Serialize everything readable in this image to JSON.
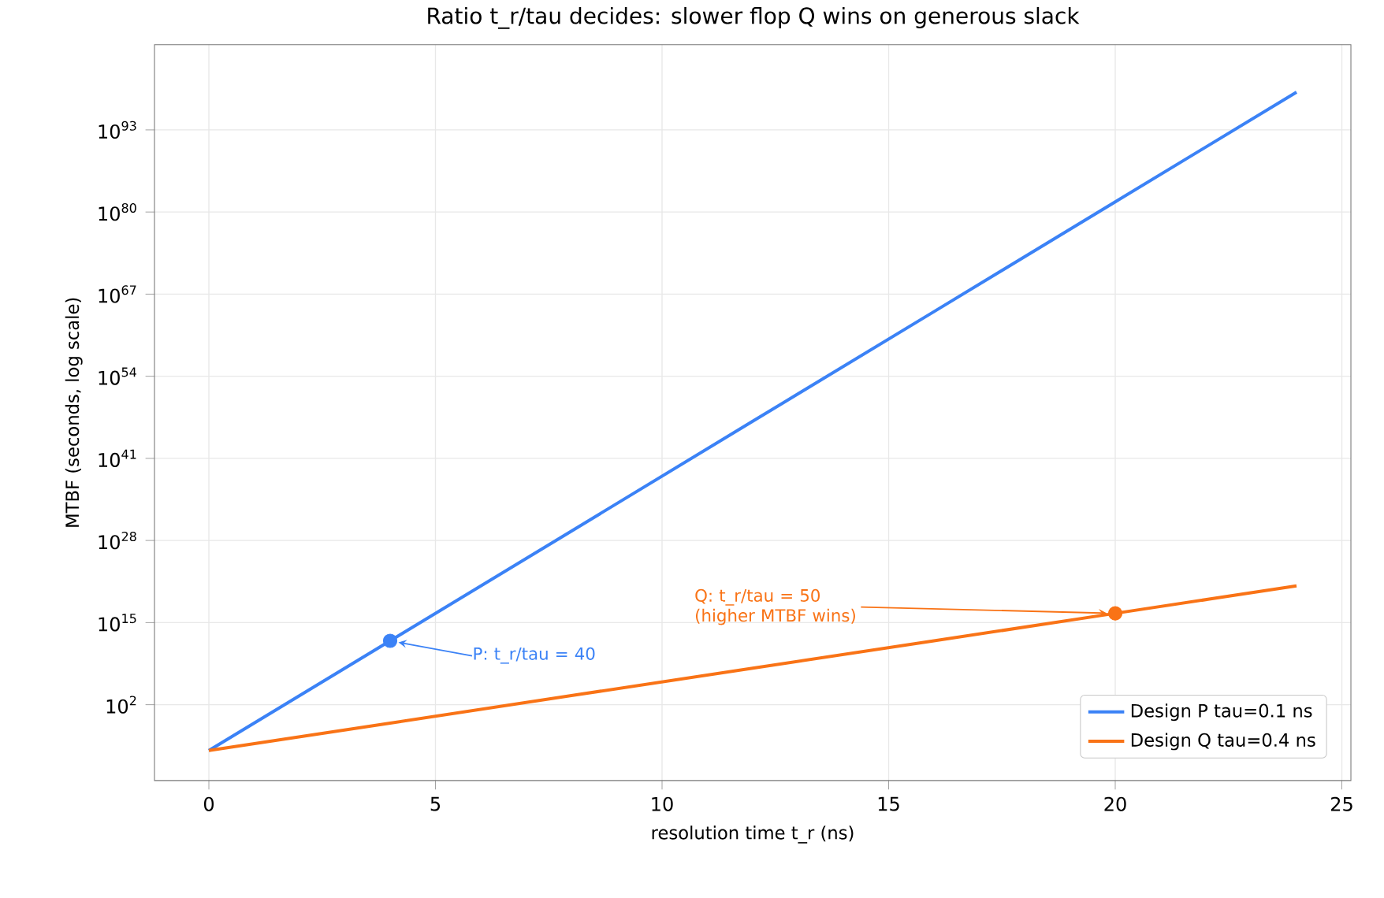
{
  "chart_data": {
    "type": "line",
    "title": "Ratio t_r/tau decides: slower flop Q wins on generous slack",
    "xlabel": "resolution time  t_r  (ns)",
    "ylabel": "MTBF  (seconds, log scale)",
    "series": [
      {
        "name": "Design P  tau=0.1 ns",
        "color": "#3b82f6",
        "x": [
          0,
          4,
          8,
          12,
          16,
          20,
          24
        ],
        "values": [
          5.6e-06,
          1300000000000.0,
          3.1e+29,
          7.4e+46,
          1.7e+64,
          4.1e+81,
          9.5e+98
        ]
      },
      {
        "name": "Design Q  tau=0.4 ns",
        "color": "#f97316",
        "x": [
          0,
          4,
          8,
          12,
          16,
          20,
          24
        ],
        "values": [
          5.6e-06,
          0.12,
          2800.0,
          60000000.0,
          1300000000000.0,
          2.9e+16,
          6.5e+20
        ]
      },
      {
        "type": "scatter",
        "marker": "circle",
        "color": "#3b82f6",
        "x": [
          4
        ],
        "values": [
          1300000000000.0
        ]
      },
      {
        "type": "scatter",
        "marker": "circle",
        "color": "#f97316",
        "x": [
          20
        ],
        "values": [
          2.9e+16
        ]
      }
    ],
    "annotations": [
      {
        "text": "P: t_r/tau = 40",
        "x": 4,
        "y": 1300000000000.0
      },
      {
        "text": "Q: t_r/tau = 50 (higher MTBF wins)",
        "x": 20,
        "y": 2.9e+16
      }
    ],
    "log": "y",
    "grid": true,
    "legend": "bottom right",
    "marker": "none",
    "line_style": "solid",
    "xlim": [
      -1.2,
      25.2
    ],
    "ylim": [
      1e-10,
      3e+106
    ],
    "xticks": [
      0,
      5,
      10,
      15,
      20,
      25
    ],
    "yticks": [
      {
        "value": 100.0,
        "label": "10$^{2}$"
      },
      {
        "value": 1000000000000000.0,
        "label": "10$^{15}$"
      },
      {
        "value": 1e+28,
        "label": "10$^{28}$"
      },
      {
        "value": 1e+41,
        "label": "10$^{41}$"
      },
      {
        "value": 1e+54,
        "label": "10$^{54}$"
      },
      {
        "value": 1e+67,
        "label": "10$^{67}$"
      },
      {
        "value": 1e+80,
        "label": "10$^{80}$"
      },
      {
        "value": 1e+93,
        "label": "10$^{93}$"
      }
    ]
  }
}
